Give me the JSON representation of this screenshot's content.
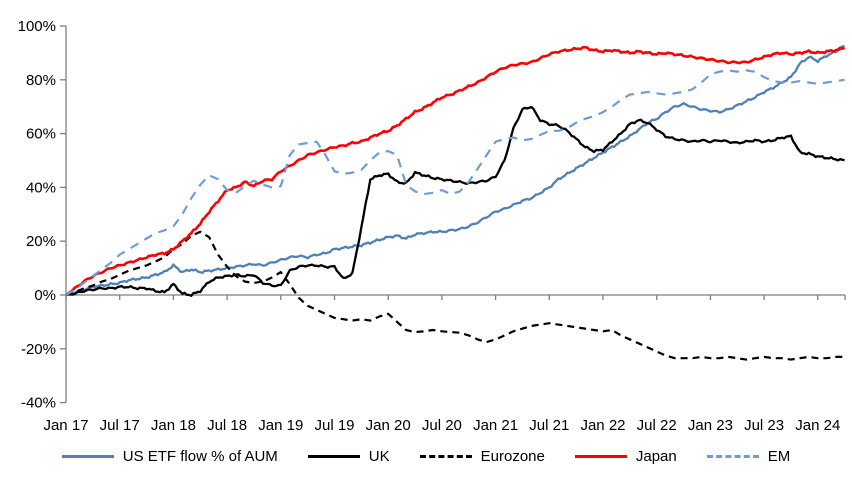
{
  "chart_data": {
    "type": "line",
    "x_tick_labels": [
      "Jan 17",
      "Jul 17",
      "Jan 18",
      "Jul 18",
      "Jan 19",
      "Jul 19",
      "Jan 20",
      "Jul 20",
      "Jan 21",
      "Jul 21",
      "Jan 22",
      "Jul 22",
      "Jan 23",
      "Jul 23",
      "Jan 24"
    ],
    "y_tick_labels": [
      "100%",
      "80%",
      "60%",
      "40%",
      "20%",
      "0%",
      "-20%",
      "-40%"
    ],
    "y_tick_values": [
      100,
      80,
      60,
      40,
      20,
      0,
      -20,
      -40
    ],
    "ylim": [
      -40,
      100
    ],
    "y_unit": "%",
    "x_unit": "months since Jan 2017, monthly points",
    "grid": "off",
    "legend_position": "bottom",
    "axis_color": "#7f7f7f",
    "series": [
      {
        "name": "US ETF flow % of AUM",
        "color": "#4e81b8",
        "style": "solid",
        "values": [
          0,
          1,
          2,
          3,
          3.5,
          4,
          4.5,
          5.5,
          6,
          6.5,
          7.5,
          8.5,
          11,
          8.5,
          9.5,
          8.5,
          9,
          9.5,
          10,
          10.5,
          11,
          11.5,
          11,
          12,
          13,
          14,
          14.5,
          14,
          15,
          15.5,
          17,
          17.5,
          18,
          18.5,
          19.5,
          20.5,
          21.5,
          22,
          21,
          22.5,
          23,
          23.5,
          23.5,
          24,
          24.5,
          25.5,
          27,
          29,
          31,
          32,
          33.5,
          35,
          36,
          38,
          40,
          43,
          45,
          47,
          49,
          51,
          53,
          55,
          57,
          59,
          61.5,
          64,
          65.5,
          68,
          70,
          71,
          70,
          69,
          68.5,
          68,
          69,
          70.5,
          72,
          73.5,
          75.5,
          77,
          79,
          81,
          86,
          88.5,
          87,
          89,
          90.5,
          92.5
        ]
      },
      {
        "name": "UK",
        "color": "#000000",
        "style": "solid",
        "values": [
          0,
          0.5,
          1.5,
          2,
          2.5,
          2.5,
          3,
          3,
          2.5,
          2.5,
          1.5,
          1,
          4,
          0.5,
          0,
          1.5,
          5,
          6.5,
          7,
          7.5,
          7,
          7.5,
          4.5,
          3.5,
          3.5,
          9,
          10.5,
          11,
          11,
          10.5,
          10.5,
          6,
          8,
          25,
          43,
          44.5,
          45,
          42,
          41.5,
          45.5,
          44.5,
          43.5,
          43,
          42.5,
          42,
          41.5,
          42,
          42.5,
          44,
          50,
          62,
          69,
          70,
          65,
          63.5,
          63,
          61,
          58,
          55,
          53.5,
          54,
          57,
          60,
          63.5,
          65,
          64,
          61.5,
          59,
          58,
          57.5,
          57,
          57.5,
          57,
          57.5,
          57,
          56.5,
          57,
          57.5,
          57,
          57.5,
          58.5,
          59,
          53,
          52.5,
          51.5,
          51,
          50.5,
          50
        ]
      },
      {
        "name": "Eurozone",
        "color": "#000000",
        "style": "dashed",
        "values": [
          0,
          1,
          2.5,
          3.5,
          5,
          6,
          7.5,
          9,
          10,
          11,
          12.5,
          14,
          17,
          19,
          22,
          23.5,
          21.5,
          15,
          10.5,
          7,
          5,
          4.5,
          5,
          6.5,
          8.5,
          4,
          -1,
          -4,
          -5.5,
          -7,
          -8.5,
          -9,
          -9.5,
          -9,
          -9.5,
          -8,
          -7,
          -10,
          -13,
          -13.8,
          -13.5,
          -13,
          -13.5,
          -13.8,
          -14,
          -15,
          -16.5,
          -17.5,
          -16.5,
          -15,
          -13.5,
          -12.5,
          -11.5,
          -11,
          -10.5,
          -11,
          -11.5,
          -12,
          -12.5,
          -13,
          -13.5,
          -13,
          -15,
          -16.5,
          -18,
          -19.5,
          -21,
          -22.5,
          -23.5,
          -23.5,
          -23.5,
          -23,
          -23.5,
          -23.5,
          -23,
          -23.5,
          -24,
          -23.5,
          -23,
          -23.5,
          -23.5,
          -24,
          -23.5,
          -23,
          -23.5,
          -23.5,
          -23,
          -23
        ]
      },
      {
        "name": "Japan",
        "color": "#fe0000",
        "style": "solid",
        "values": [
          0,
          2.5,
          5,
          7,
          8.5,
          10,
          11,
          12,
          13,
          14,
          15,
          15.5,
          17,
          20,
          23,
          26.5,
          31,
          35,
          39,
          40,
          42,
          40.5,
          42.5,
          43,
          46,
          48,
          50,
          52,
          53,
          54,
          55,
          55.5,
          56.5,
          57,
          58.5,
          60,
          61,
          63,
          65.5,
          68,
          69.5,
          71.5,
          73.5,
          74.5,
          76,
          77.5,
          79,
          81,
          83,
          84.5,
          85.5,
          86,
          86.5,
          88,
          89.5,
          90.5,
          91,
          91.5,
          92,
          91,
          90.5,
          91,
          90.5,
          90,
          90.5,
          90,
          89.5,
          90,
          89.5,
          89,
          88.5,
          88,
          87.5,
          87,
          86.5,
          86.5,
          86.5,
          87.5,
          88.5,
          89.5,
          90,
          89.5,
          90,
          90.5,
          90,
          90.5,
          91,
          92
        ]
      },
      {
        "name": "EM",
        "color": "#6f9bd6",
        "style": "dashed",
        "values": [
          0,
          2,
          4.5,
          7,
          9.5,
          12,
          15,
          17,
          19,
          21,
          23,
          24,
          25.5,
          30,
          36,
          41,
          44.5,
          43,
          39,
          38,
          40.5,
          42.5,
          41,
          40,
          40.5,
          52,
          56,
          56.5,
          57,
          52,
          46,
          45,
          45.5,
          46.5,
          50,
          53,
          53.5,
          52,
          41,
          38.5,
          37.5,
          38,
          39,
          37.5,
          38.5,
          42,
          47,
          52,
          57,
          58,
          58.5,
          57.5,
          58,
          59.5,
          61,
          61,
          62,
          64,
          65.5,
          66.5,
          68,
          70,
          72.5,
          74.5,
          75,
          75.5,
          75,
          74.5,
          75,
          75.5,
          76.5,
          79,
          82,
          83,
          83.5,
          83,
          83.5,
          83,
          81,
          79.5,
          79,
          79,
          79.5,
          79,
          78.5,
          79,
          79.5,
          80
        ]
      }
    ]
  }
}
